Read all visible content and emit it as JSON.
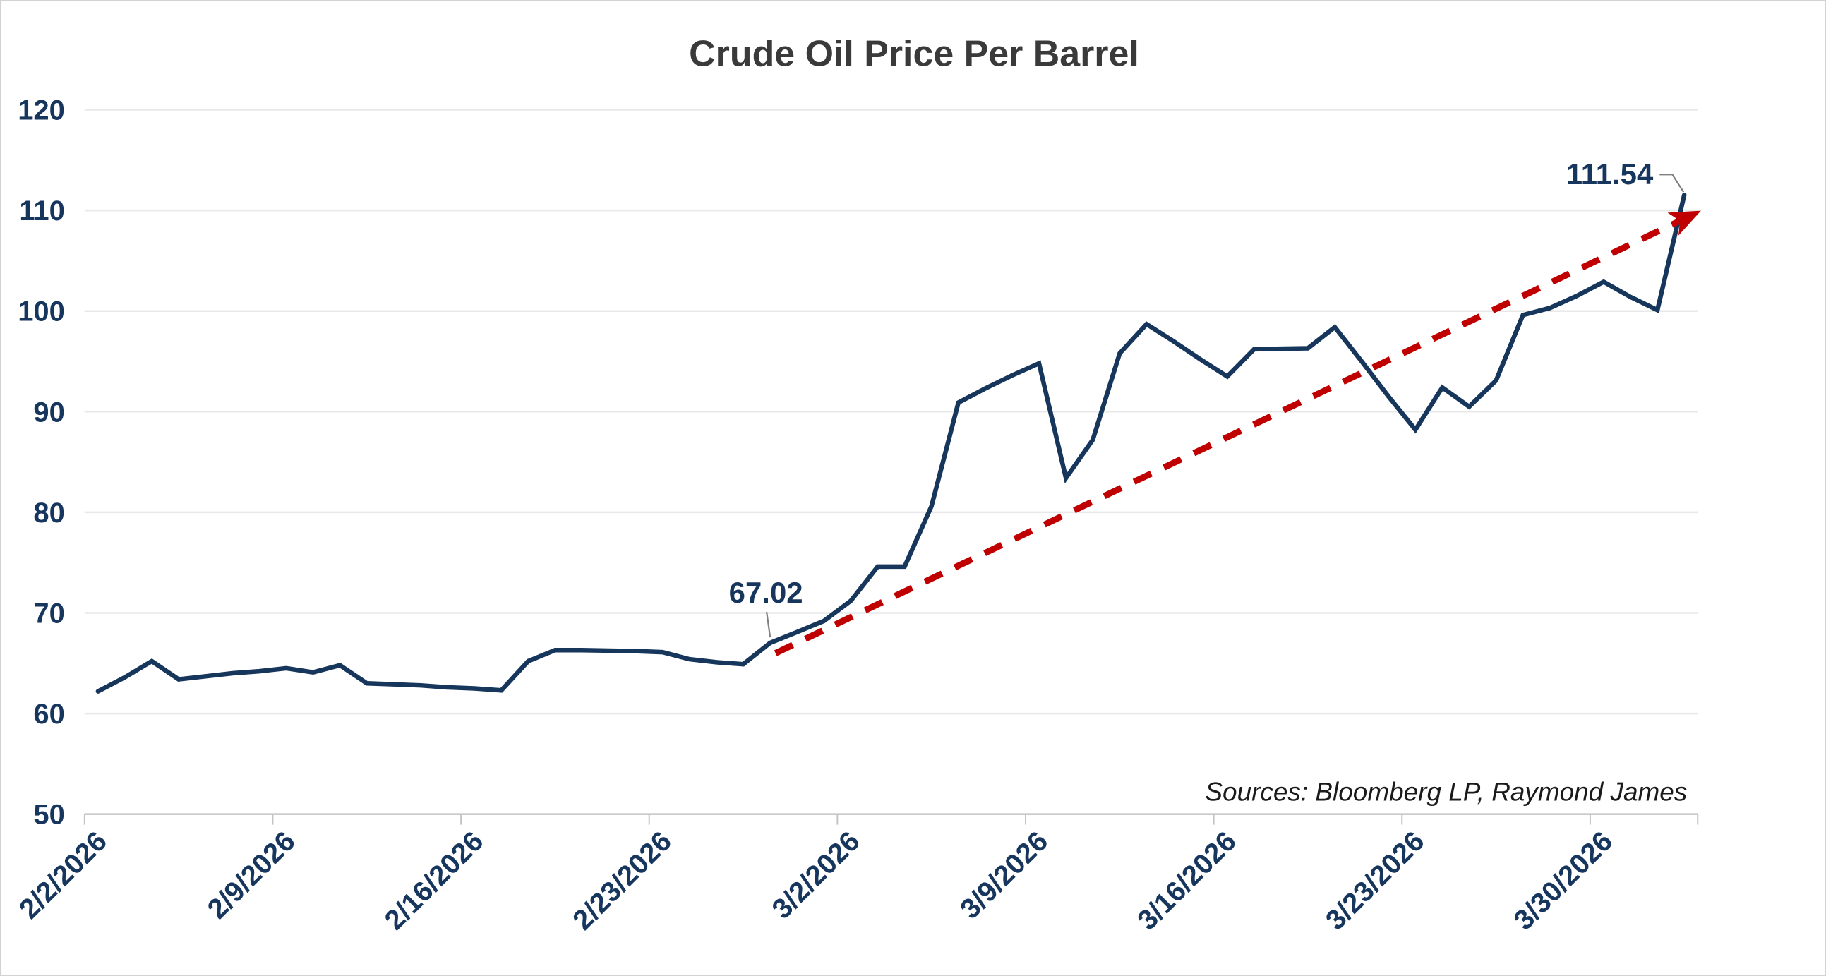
{
  "title": "Crude Oil Price Per Barrel",
  "sources_note": "Sources: Bloomberg LP, Raymond James",
  "colors": {
    "line": "#17365C",
    "axis_text": "#17365D",
    "trend": "#C00000",
    "gridline": "#E8E8E8",
    "axis_line": "#C4C4C4",
    "callout": "#7F7F7F",
    "title": "#3A3A3A",
    "sources": "#1A1A1A"
  },
  "chart_data": {
    "type": "line",
    "title": "Crude Oil Price Per Barrel",
    "xlabel": "",
    "ylabel": "",
    "ylim": [
      50,
      120
    ],
    "y_ticks": [
      50,
      60,
      70,
      80,
      90,
      100,
      110,
      120
    ],
    "grid": true,
    "legend": "none",
    "x_tick_every": 7,
    "x_tick_labels": [
      "2/2/2026",
      "2/9/2026",
      "2/16/2026",
      "2/23/2026",
      "3/2/2026",
      "3/9/2026",
      "3/16/2026",
      "3/23/2026",
      "3/30/2026"
    ],
    "x": [
      "2/2/2026",
      "2/3/2026",
      "2/4/2026",
      "2/5/2026",
      "2/6/2026",
      "2/7/2026",
      "2/8/2026",
      "2/9/2026",
      "2/10/2026",
      "2/11/2026",
      "2/12/2026",
      "2/13/2026",
      "2/14/2026",
      "2/15/2026",
      "2/16/2026",
      "2/17/2026",
      "2/18/2026",
      "2/19/2026",
      "2/20/2026",
      "2/21/2026",
      "2/22/2026",
      "2/23/2026",
      "2/24/2026",
      "2/25/2026",
      "2/26/2026",
      "2/27/2026",
      "2/28/2026",
      "3/1/2026",
      "3/2/2026",
      "3/3/2026",
      "3/4/2026",
      "3/5/2026",
      "3/6/2026",
      "3/7/2026",
      "3/8/2026",
      "3/9/2026",
      "3/10/2026",
      "3/11/2026",
      "3/12/2026",
      "3/13/2026",
      "3/14/2026",
      "3/15/2026",
      "3/16/2026",
      "3/17/2026",
      "3/18/2026",
      "3/19/2026",
      "3/20/2026",
      "3/21/2026",
      "3/22/2026",
      "3/23/2026",
      "3/24/2026",
      "3/25/2026",
      "3/26/2026",
      "3/27/2026",
      "3/28/2026",
      "3/29/2026",
      "3/30/2026",
      "3/31/2026",
      "4/1/2026",
      "4/2/2026"
    ],
    "series": [
      {
        "name": "Crude oil price per barrel (USD)",
        "values": [
          62.2,
          63.6,
          65.2,
          63.4,
          63.7,
          64.0,
          64.2,
          64.5,
          64.1,
          64.8,
          63.0,
          62.9,
          62.8,
          62.6,
          62.5,
          62.3,
          65.2,
          66.3,
          66.3,
          66.25,
          66.2,
          66.1,
          65.4,
          65.1,
          64.9,
          67.02,
          68.1,
          69.2,
          71.2,
          74.6,
          74.6,
          80.6,
          90.9,
          92.3,
          93.6,
          94.8,
          83.4,
          87.2,
          95.8,
          98.7,
          97.0,
          95.2,
          93.5,
          96.2,
          96.25,
          96.3,
          98.4,
          95.0,
          91.5,
          88.2,
          92.4,
          90.5,
          93.1,
          99.6,
          100.3,
          101.5,
          102.9,
          101.4,
          100.1,
          111.54
        ]
      }
    ],
    "trendline": {
      "style": "dashed",
      "arrow": true,
      "from": {
        "index": 25.2,
        "value": 66.0
      },
      "to": {
        "index": 59.1,
        "value": 109.3
      }
    },
    "annotations": [
      {
        "label": "67.02",
        "index": 25,
        "value": 67.02,
        "placement": "above"
      },
      {
        "label": "111.54",
        "index": 59,
        "value": 111.54,
        "placement": "left"
      }
    ]
  }
}
